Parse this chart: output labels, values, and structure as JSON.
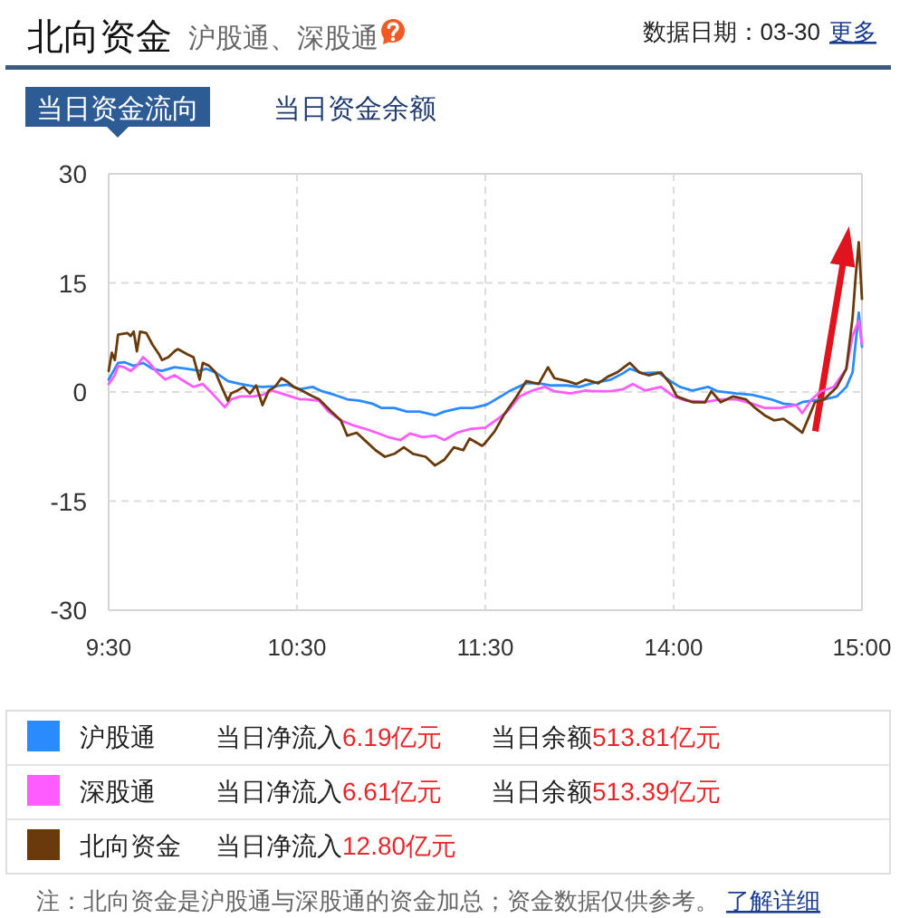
{
  "chart_data": [
    {
      "type": "line",
      "title": "北向资金",
      "subtitle": "沪股通、深股通",
      "xlim": [
        9.5,
        11.5
      ],
      "xticks": [
        {
          "value": 9.5,
          "label": "9:30"
        },
        {
          "value": 10.5,
          "label": "10:30"
        },
        {
          "value": 11.5,
          "label": "11:30"
        }
      ],
      "ylim": [
        -30,
        30
      ],
      "yticks": [
        -30,
        -15,
        0,
        15,
        30
      ],
      "grid": true,
      "legend": "bottom",
      "series": [
        {
          "name": "沪股通",
          "color": "#2a8bff",
          "x": [
            9.5,
            9.55,
            9.583,
            9.633,
            9.683,
            9.733,
            9.783,
            9.85,
            9.917,
            9.983,
            10.017,
            10.067,
            10.133,
            10.2,
            10.267,
            10.317,
            10.383,
            10.45,
            10.517,
            10.583,
            10.633,
            10.7,
            10.767,
            10.833,
            10.9,
            10.95,
            11.017,
            11.083,
            11.15,
            11.233,
            11.283,
            11.367,
            11.433,
            11.5
          ],
          "values": [
            1.7,
            4.0,
            4.1,
            3.6,
            4.0,
            3.2,
            2.9,
            3.4,
            3.2,
            2.9,
            3.2,
            2.7,
            1.5,
            1.1,
            0.8,
            0.7,
            0.8,
            1.0,
            0.4,
            0.7,
            0.1,
            -0.4,
            -1.0,
            -1.2,
            -1.6,
            -2.2,
            -2.2,
            -2.7,
            -2.7,
            -3.2,
            -2.7,
            -2.2,
            -2.2,
            -1.8
          ]
        },
        {
          "name": "深股通",
          "color": "#ff5cff",
          "x": [
            9.5,
            9.533,
            9.55,
            9.583,
            9.617,
            9.65,
            9.683,
            9.717,
            9.75,
            9.8,
            9.85,
            9.9,
            9.95,
            10.0,
            10.05,
            10.117,
            10.15,
            10.2,
            10.267,
            10.317,
            10.367,
            10.417,
            10.467,
            10.517,
            10.55,
            10.617,
            10.667,
            10.733,
            10.8,
            10.867,
            10.933,
            10.983,
            11.05,
            11.1,
            11.167,
            11.233,
            11.283,
            11.35,
            11.417,
            11.5
          ],
          "values": [
            1.1,
            2.3,
            3.6,
            3.4,
            2.9,
            3.6,
            4.8,
            4.0,
            2.9,
            1.7,
            2.3,
            1.5,
            0.7,
            1.1,
            -0.2,
            -2.1,
            -1.0,
            -0.6,
            -0.6,
            -0.4,
            0.2,
            -0.2,
            -0.6,
            -1.0,
            -1.0,
            -1.2,
            -2.7,
            -3.9,
            -4.6,
            -5.1,
            -5.7,
            -6.2,
            -6.6,
            -5.7,
            -6.2,
            -6.0,
            -6.6,
            -5.6,
            -5.1,
            -4.9
          ]
        },
        {
          "name": "北向资金",
          "color": "#6b3a0b",
          "x": [
            9.5,
            9.517,
            9.533,
            9.55,
            9.6,
            9.617,
            9.633,
            9.65,
            9.667,
            9.7,
            9.733,
            9.767,
            9.783,
            9.817,
            9.85,
            9.867,
            9.917,
            9.95,
            9.983,
            10.0,
            10.033,
            10.067,
            10.1,
            10.133,
            10.15,
            10.183,
            10.217,
            10.25,
            10.283,
            10.317,
            10.35,
            10.383,
            10.417,
            10.45,
            10.483,
            10.517,
            10.583,
            10.617,
            10.683,
            10.733,
            10.767,
            10.817,
            10.867,
            10.917,
            10.967,
            11.017,
            11.067,
            11.117,
            11.183,
            11.233,
            11.283,
            11.333,
            11.383,
            11.417,
            11.483,
            11.5
          ],
          "values": [
            2.9,
            5.4,
            4.4,
            7.9,
            8.1,
            7.7,
            8.3,
            5.6,
            8.3,
            8.1,
            6.5,
            5.2,
            4.4,
            4.8,
            5.6,
            5.9,
            5.2,
            4.8,
            1.7,
            4.0,
            3.6,
            2.7,
            0.7,
            -1.2,
            -0.2,
            0.2,
            0.7,
            -0.2,
            0.9,
            -1.8,
            0.2,
            0.7,
            1.9,
            1.4,
            0.7,
            0.3,
            -0.6,
            -1.0,
            -2.7,
            -3.9,
            -6.0,
            -5.6,
            -6.8,
            -8.0,
            -8.9,
            -8.5,
            -7.6,
            -8.5,
            -8.9,
            -10.1,
            -9.3,
            -7.6,
            -8.0,
            -6.4,
            -7.4,
            -7.0
          ]
        }
      ],
      "annotations": [
        "数据日期：03-30",
        "更多",
        "当日资金流向",
        "当日资金余额",
        "当日净流入6.19亿元",
        "当日余额513.81亿元",
        "当日净流入6.61亿元",
        "当日余额513.39亿元",
        "当日净流入12.80亿元",
        "注：北向资金是沪股通与深股通的资金加总；资金数据仅供参考。",
        "了解详细"
      ]
    },
    {
      "type": "line",
      "xlim": [
        13,
        15
      ],
      "xticks": [
        {
          "value": 14,
          "label": "14:00"
        },
        {
          "value": 15,
          "label": "15:00"
        }
      ],
      "ylim": [
        -30,
        30
      ],
      "yticks": [
        -30,
        -15,
        0,
        15,
        30
      ],
      "grid": true,
      "tick_labels": "x",
      "series": [
        {
          "color": "#2a8bff",
          "x": [
            13.0,
            13.017,
            13.083,
            13.133,
            13.217,
            13.283,
            13.35,
            13.433,
            13.5,
            13.567,
            13.667,
            13.733,
            13.767,
            13.833,
            13.917,
            13.983,
            14.033,
            14.1,
            14.183,
            14.233,
            14.333,
            14.417,
            14.517,
            14.583,
            14.65,
            14.683,
            14.733,
            14.8,
            14.867,
            14.917,
            14.95,
            14.983,
            15.0
          ],
          "values": [
            -1.8,
            -1.6,
            -0.6,
            0.2,
            1.2,
            1.2,
            0.9,
            0.9,
            0.7,
            1.2,
            1.7,
            2.6,
            3.2,
            2.6,
            2.7,
            1.5,
            0.7,
            0.2,
            0.7,
            0.1,
            -0.2,
            -0.4,
            -1.0,
            -1.6,
            -1.8,
            -1.4,
            -1.2,
            -1.0,
            -0.6,
            0.7,
            2.7,
            10.9,
            6.2
          ]
        },
        {
          "color": "#ff5cff",
          "x": [
            13.0,
            13.067,
            13.117,
            13.183,
            13.25,
            13.317,
            13.367,
            13.45,
            13.533,
            13.567,
            13.667,
            13.733,
            13.783,
            13.85,
            13.933,
            14.0,
            14.067,
            14.167,
            14.25,
            14.333,
            14.417,
            14.483,
            14.567,
            14.65,
            14.683,
            14.733,
            14.783,
            14.85,
            14.917,
            14.95,
            14.983,
            15.0
          ],
          "values": [
            -4.9,
            -3.7,
            -2.7,
            -0.6,
            0.2,
            0.7,
            0.1,
            -0.2,
            0.2,
            0.1,
            0.1,
            0.4,
            1.1,
            0.2,
            0.7,
            -0.6,
            -1.2,
            -1.4,
            -1.0,
            -1.0,
            -1.6,
            -2.2,
            -2.2,
            -1.8,
            -2.9,
            -1.0,
            0.1,
            0.7,
            3.2,
            7.7,
            9.8,
            6.6
          ]
        },
        {
          "color": "#6b3a0b",
          "x": [
            13.0,
            13.05,
            13.1,
            13.167,
            13.217,
            13.283,
            13.333,
            13.367,
            13.433,
            13.483,
            13.533,
            13.6,
            13.65,
            13.7,
            13.767,
            13.817,
            13.867,
            13.933,
            13.983,
            14.017,
            14.1,
            14.167,
            14.2,
            14.25,
            14.317,
            14.383,
            14.433,
            14.483,
            14.533,
            14.583,
            14.633,
            14.683,
            14.717,
            14.75,
            14.8,
            14.867,
            14.917,
            14.95,
            14.967,
            14.983,
            15.0
          ],
          "values": [
            -7.0,
            -5.4,
            -3.1,
            -0.6,
            1.5,
            1.1,
            3.4,
            1.9,
            1.5,
            1.1,
            1.7,
            1.2,
            2.1,
            2.7,
            4.0,
            2.7,
            2.3,
            2.7,
            1.1,
            -0.6,
            -1.4,
            -1.4,
            0.1,
            -1.4,
            -0.6,
            -1.0,
            -2.2,
            -3.2,
            -3.9,
            -3.7,
            -4.6,
            -5.6,
            -3.5,
            -1.4,
            -1.0,
            0.7,
            3.2,
            10.2,
            16.0,
            20.6,
            12.8
          ]
        }
      ]
    }
  ]
}
